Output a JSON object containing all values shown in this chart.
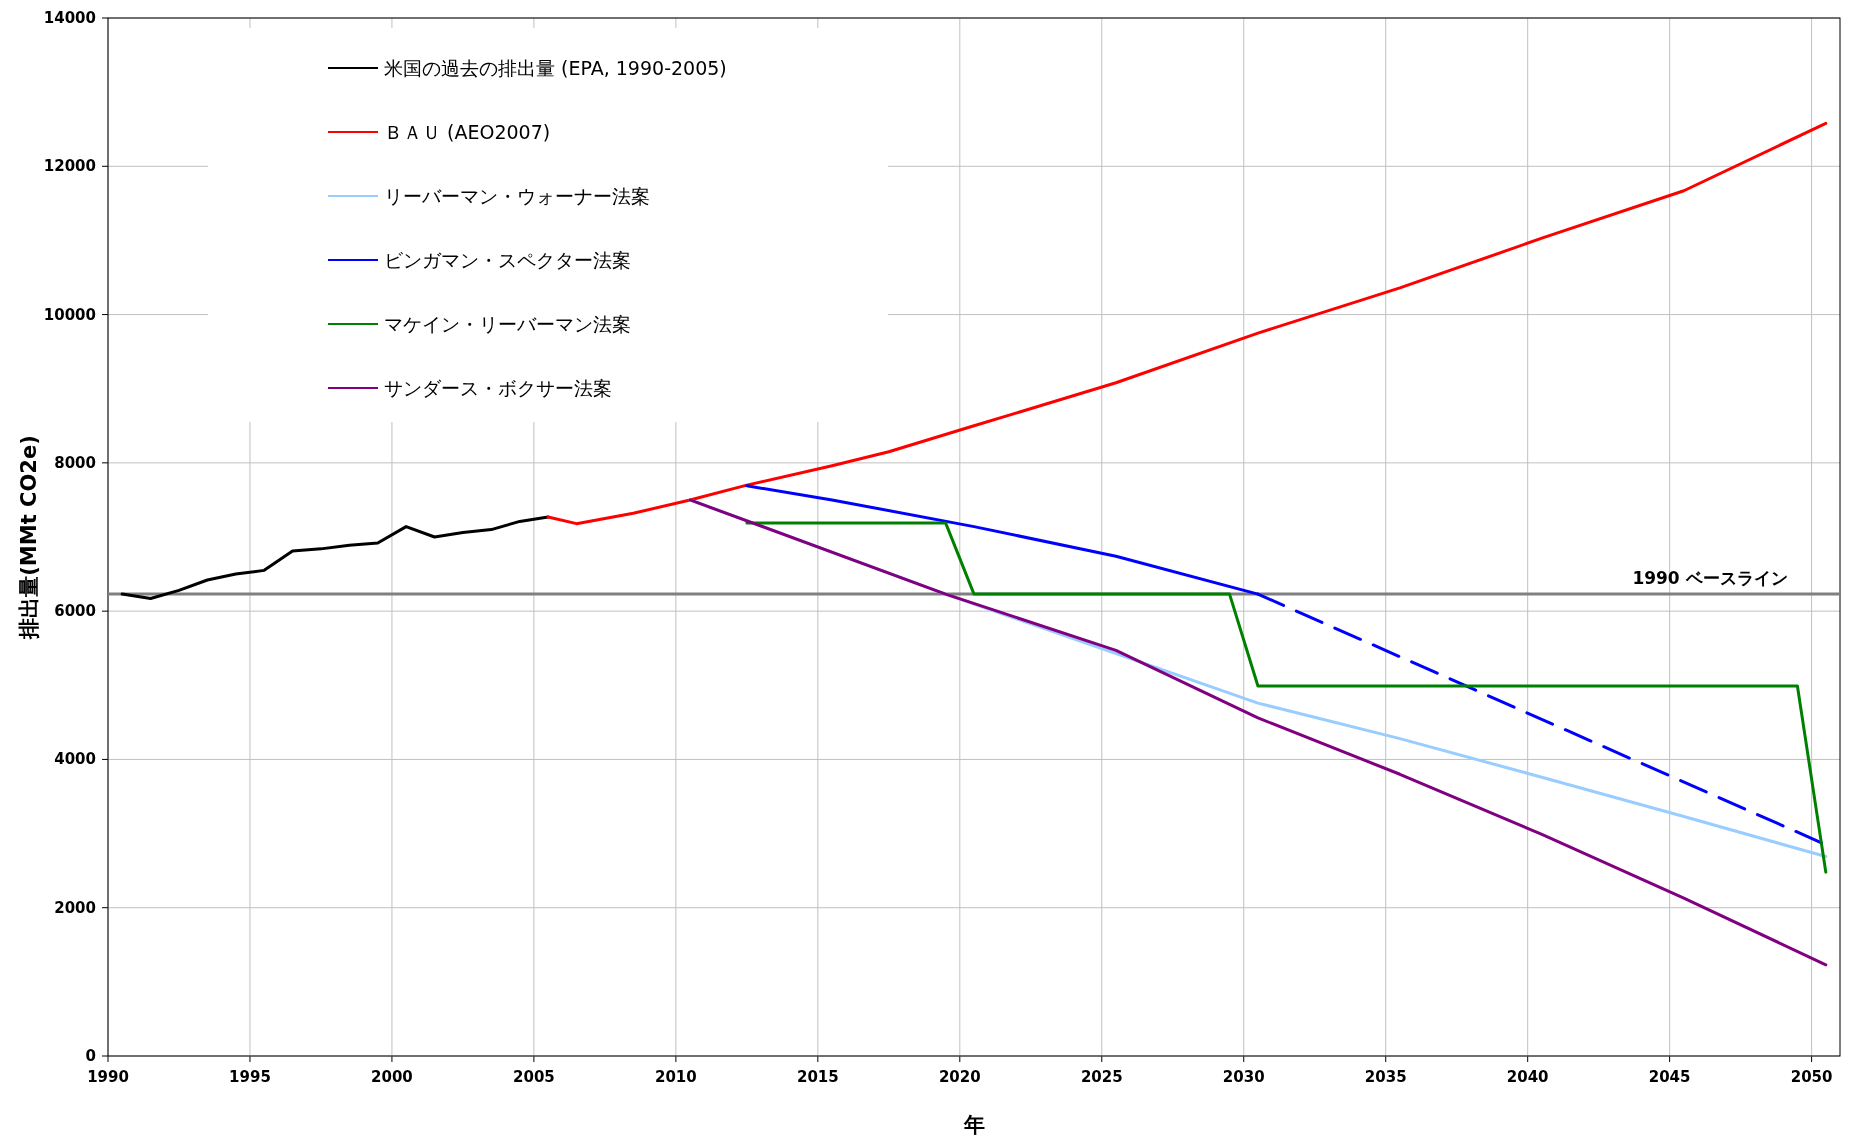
{
  "chart_data": {
    "type": "line",
    "xlabel": "年",
    "ylabel": "排出量(MMt CO2e)",
    "xlim": [
      1990,
      2051
    ],
    "xticks": [
      1990,
      1995,
      2000,
      2005,
      2010,
      2015,
      2020,
      2025,
      2030,
      2035,
      2040,
      2045,
      2050
    ],
    "ylim": [
      0,
      14000
    ],
    "yticks": [
      0,
      2000,
      4000,
      6000,
      8000,
      10000,
      12000,
      14000
    ],
    "grid": true,
    "legend": "top left",
    "series": [
      {
        "name": "米国の過去の排出量 (EPA, 1990-2005)",
        "color": "#000000",
        "x": [
          1990.5,
          1991.5,
          1992.5,
          1993.5,
          1994.5,
          1995.5,
          1996.5,
          1997.5,
          1998.5,
          1999.5,
          2000.5,
          2001.5,
          2002.5,
          2003.5,
          2004.5,
          2005.5
        ],
        "values": [
          6230,
          6170,
          6280,
          6420,
          6500,
          6550,
          6810,
          6840,
          6890,
          6920,
          7140,
          7000,
          7060,
          7100,
          7210,
          7270
        ]
      },
      {
        "name": "ＢＡＵ (AEO2007)",
        "color": "#ff0000",
        "x": [
          2005.5,
          2006.5,
          2008.5,
          2010.5,
          2012.5,
          2015.5,
          2017.5,
          2020.5,
          2025.5,
          2030.5,
          2035.5,
          2040.5,
          2045.5,
          2050.5
        ],
        "values": [
          7270,
          7180,
          7320,
          7500,
          7700,
          7960,
          8150,
          8500,
          9080,
          9750,
          10360,
          11030,
          11670,
          12580
        ]
      },
      {
        "name": "リーバーマン・ウォーナー法案",
        "color": "#99ccff",
        "x": [
          2010.5,
          2019.5,
          2030.5,
          2035.5,
          2040.5,
          2045.5,
          2050.5
        ],
        "values": [
          7500,
          6230,
          4760,
          4280,
          3760,
          3230,
          2690
        ]
      },
      {
        "name": "ビンガマン・スペクター法案",
        "color": "#0000ff",
        "x": [
          2012.5,
          2015.5,
          2020.5,
          2025.5,
          2030.5
        ],
        "values": [
          7690,
          7500,
          7140,
          6740,
          6230
        ]
      },
      {
        "color": "#0000ff",
        "line_style": "dashed",
        "x": [
          2030.5,
          2050.5
        ],
        "values": [
          6230,
          2850
        ]
      },
      {
        "name": "マケイン・リーバーマン法案",
        "color": "#008000",
        "x": [
          2012.5,
          2019.5,
          2020.5,
          2029.5,
          2030.5,
          2049.5,
          2050.5
        ],
        "values": [
          7190,
          7190,
          6230,
          6230,
          4990,
          4990,
          2480
        ]
      },
      {
        "name": "サンダース・ボクサー法案",
        "color": "#800080",
        "x": [
          2010.5,
          2019.5,
          2025.5,
          2030.5,
          2035.5,
          2040.5,
          2045.5,
          2050.5
        ],
        "values": [
          7500,
          6230,
          5470,
          4560,
          3800,
          2990,
          2130,
          1230
        ]
      }
    ],
    "ref_lines": [
      {
        "axis": "y",
        "value": 6230,
        "label": "1990 ベースライン",
        "color": "#808080"
      }
    ]
  }
}
